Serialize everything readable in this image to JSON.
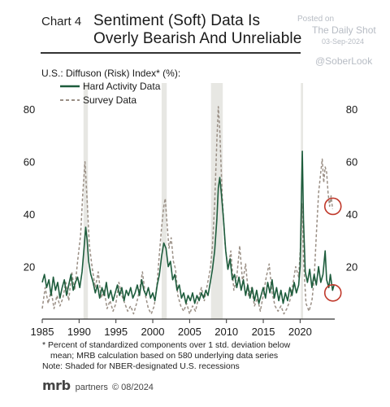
{
  "header": {
    "chart_label": "Chart 4",
    "title_line1": "Sentiment (Soft) Data Is",
    "title_line2": "Overly Bearish And Unreliable"
  },
  "watermark": {
    "posted": "Posted on",
    "site": "The Daily Shot",
    "date": "03-Sep-2024",
    "handle": "@SoberLook"
  },
  "footnotes": {
    "line1": "* Percent of standardized  components over 1 std. deviation below",
    "line1b": "mean; MRB calculation based on 580 underlying data series",
    "line2": "Note: Shaded for NBER-designated U.S. recessions"
  },
  "brand": {
    "logo": "mrb",
    "text": "partners",
    "date": "© 08/2024"
  },
  "colors": {
    "hard": "#1d5c3c",
    "survey": "#9a8f85",
    "recession": "#e7e7e3",
    "circle": "#c0392b"
  },
  "chart_data": {
    "type": "line",
    "title": "U.S.: Diffuson (Risk) Index* (%):",
    "xlim": [
      1985,
      2024.7
    ],
    "ylim": [
      0,
      90
    ],
    "y_ticks": [
      20,
      40,
      60,
      80
    ],
    "x_ticks": [
      1985,
      1990,
      1995,
      2000,
      2005,
      2010,
      2015,
      2020
    ],
    "legend_position": "top-left",
    "recessions": [
      [
        1990.6,
        1991.2
      ],
      [
        2001.2,
        2001.9
      ],
      [
        2007.9,
        2009.5
      ],
      [
        2020.1,
        2020.4
      ]
    ],
    "series": [
      {
        "name": "Hard Activity Data",
        "style": "solid",
        "points": [
          [
            1985.0,
            14
          ],
          [
            1985.3,
            17
          ],
          [
            1985.6,
            12
          ],
          [
            1985.9,
            15
          ],
          [
            1986.2,
            9
          ],
          [
            1986.5,
            16
          ],
          [
            1986.8,
            11
          ],
          [
            1987.1,
            14
          ],
          [
            1987.4,
            8
          ],
          [
            1987.7,
            12
          ],
          [
            1988.0,
            15
          ],
          [
            1988.3,
            9
          ],
          [
            1988.6,
            13
          ],
          [
            1988.9,
            17
          ],
          [
            1989.2,
            11
          ],
          [
            1989.5,
            14
          ],
          [
            1989.8,
            16
          ],
          [
            1990.1,
            12
          ],
          [
            1990.4,
            18
          ],
          [
            1990.7,
            28
          ],
          [
            1990.9,
            35
          ],
          [
            1991.1,
            30
          ],
          [
            1991.3,
            22
          ],
          [
            1991.6,
            17
          ],
          [
            1991.9,
            14
          ],
          [
            1992.2,
            10
          ],
          [
            1992.5,
            13
          ],
          [
            1992.8,
            8
          ],
          [
            1993.1,
            12
          ],
          [
            1993.4,
            9
          ],
          [
            1993.7,
            14
          ],
          [
            1994.0,
            8
          ],
          [
            1994.3,
            11
          ],
          [
            1994.6,
            7
          ],
          [
            1994.9,
            10
          ],
          [
            1995.2,
            13
          ],
          [
            1995.5,
            9
          ],
          [
            1995.8,
            12
          ],
          [
            1996.1,
            7
          ],
          [
            1996.4,
            11
          ],
          [
            1996.7,
            9
          ],
          [
            1997.0,
            12
          ],
          [
            1997.3,
            8
          ],
          [
            1997.6,
            10
          ],
          [
            1997.9,
            13
          ],
          [
            1998.2,
            9
          ],
          [
            1998.5,
            15
          ],
          [
            1998.8,
            11
          ],
          [
            1999.1,
            9
          ],
          [
            1999.4,
            12
          ],
          [
            1999.7,
            8
          ],
          [
            2000.0,
            10
          ],
          [
            2000.3,
            7
          ],
          [
            2000.6,
            13
          ],
          [
            2000.9,
            17
          ],
          [
            2001.2,
            24
          ],
          [
            2001.5,
            29
          ],
          [
            2001.8,
            27
          ],
          [
            2002.1,
            20
          ],
          [
            2002.4,
            22
          ],
          [
            2002.7,
            15
          ],
          [
            2003.0,
            17
          ],
          [
            2003.3,
            11
          ],
          [
            2003.6,
            13
          ],
          [
            2003.9,
            8
          ],
          [
            2004.2,
            10
          ],
          [
            2004.5,
            6
          ],
          [
            2004.8,
            9
          ],
          [
            2005.1,
            7
          ],
          [
            2005.4,
            10
          ],
          [
            2005.7,
            6
          ],
          [
            2006.0,
            9
          ],
          [
            2006.3,
            7
          ],
          [
            2006.6,
            10
          ],
          [
            2006.9,
            8
          ],
          [
            2007.2,
            11
          ],
          [
            2007.5,
            9
          ],
          [
            2007.8,
            14
          ],
          [
            2008.1,
            19
          ],
          [
            2008.4,
            26
          ],
          [
            2008.7,
            38
          ],
          [
            2008.9,
            50
          ],
          [
            2009.1,
            54
          ],
          [
            2009.3,
            48
          ],
          [
            2009.6,
            38
          ],
          [
            2009.9,
            26
          ],
          [
            2010.2,
            19
          ],
          [
            2010.5,
            23
          ],
          [
            2010.8,
            15
          ],
          [
            2011.1,
            17
          ],
          [
            2011.4,
            12
          ],
          [
            2011.7,
            16
          ],
          [
            2012.0,
            11
          ],
          [
            2012.3,
            15
          ],
          [
            2012.6,
            9
          ],
          [
            2012.9,
            13
          ],
          [
            2013.2,
            8
          ],
          [
            2013.5,
            12
          ],
          [
            2013.8,
            7
          ],
          [
            2014.1,
            11
          ],
          [
            2014.4,
            6
          ],
          [
            2014.7,
            9
          ],
          [
            2015.0,
            12
          ],
          [
            2015.3,
            8
          ],
          [
            2015.6,
            14
          ],
          [
            2015.9,
            10
          ],
          [
            2016.2,
            15
          ],
          [
            2016.5,
            8
          ],
          [
            2016.8,
            12
          ],
          [
            2017.1,
            7
          ],
          [
            2017.4,
            11
          ],
          [
            2017.7,
            6
          ],
          [
            2018.0,
            10
          ],
          [
            2018.3,
            7
          ],
          [
            2018.6,
            12
          ],
          [
            2018.9,
            9
          ],
          [
            2019.2,
            14
          ],
          [
            2019.5,
            10
          ],
          [
            2019.8,
            13
          ],
          [
            2020.0,
            20
          ],
          [
            2020.2,
            50
          ],
          [
            2020.3,
            64
          ],
          [
            2020.45,
            38
          ],
          [
            2020.7,
            18
          ],
          [
            2021.0,
            14
          ],
          [
            2021.3,
            19
          ],
          [
            2021.6,
            12
          ],
          [
            2021.9,
            17
          ],
          [
            2022.2,
            13
          ],
          [
            2022.5,
            20
          ],
          [
            2022.8,
            14
          ],
          [
            2023.1,
            17
          ],
          [
            2023.4,
            26
          ],
          [
            2023.6,
            15
          ],
          [
            2023.9,
            12
          ],
          [
            2024.1,
            17
          ],
          [
            2024.4,
            11
          ],
          [
            2024.6,
            13
          ]
        ]
      },
      {
        "name": "Survey Data",
        "style": "dashed",
        "points": [
          [
            1985.0,
            4
          ],
          [
            1985.4,
            12
          ],
          [
            1985.8,
            6
          ],
          [
            1986.2,
            11
          ],
          [
            1986.6,
            4
          ],
          [
            1987.0,
            9
          ],
          [
            1987.4,
            5
          ],
          [
            1987.8,
            8
          ],
          [
            1988.2,
            14
          ],
          [
            1988.6,
            7
          ],
          [
            1989.0,
            18
          ],
          [
            1989.4,
            11
          ],
          [
            1989.8,
            22
          ],
          [
            1990.2,
            32
          ],
          [
            1990.5,
            48
          ],
          [
            1990.8,
            60
          ],
          [
            1991.1,
            45
          ],
          [
            1991.4,
            28
          ],
          [
            1991.8,
            19
          ],
          [
            1992.2,
            12
          ],
          [
            1992.6,
            18
          ],
          [
            1993.0,
            8
          ],
          [
            1993.4,
            11
          ],
          [
            1993.8,
            4
          ],
          [
            1994.2,
            7
          ],
          [
            1994.6,
            3
          ],
          [
            1995.0,
            6
          ],
          [
            1995.4,
            14
          ],
          [
            1995.8,
            9
          ],
          [
            1996.2,
            6
          ],
          [
            1996.6,
            3
          ],
          [
            1997.0,
            5
          ],
          [
            1997.4,
            2
          ],
          [
            1997.8,
            6
          ],
          [
            1998.2,
            11
          ],
          [
            1998.6,
            18
          ],
          [
            1999.0,
            9
          ],
          [
            1999.4,
            4
          ],
          [
            1999.8,
            2
          ],
          [
            2000.2,
            5
          ],
          [
            2000.6,
            14
          ],
          [
            2000.9,
            25
          ],
          [
            2001.2,
            35
          ],
          [
            2001.5,
            43
          ],
          [
            2001.7,
            46
          ],
          [
            2001.9,
            38
          ],
          [
            2002.2,
            27
          ],
          [
            2002.5,
            31
          ],
          [
            2002.8,
            22
          ],
          [
            2003.1,
            19
          ],
          [
            2003.4,
            9
          ],
          [
            2003.8,
            5
          ],
          [
            2004.2,
            3
          ],
          [
            2004.6,
            6
          ],
          [
            2005.0,
            2
          ],
          [
            2005.4,
            5
          ],
          [
            2005.8,
            3
          ],
          [
            2006.2,
            8
          ],
          [
            2006.6,
            12
          ],
          [
            2007.0,
            7
          ],
          [
            2007.4,
            13
          ],
          [
            2007.8,
            19
          ],
          [
            2008.1,
            28
          ],
          [
            2008.4,
            44
          ],
          [
            2008.7,
            68
          ],
          [
            2008.9,
            81
          ],
          [
            2009.1,
            72
          ],
          [
            2009.4,
            48
          ],
          [
            2009.8,
            29
          ],
          [
            2010.2,
            19
          ],
          [
            2010.6,
            26
          ],
          [
            2011.0,
            11
          ],
          [
            2011.4,
            16
          ],
          [
            2011.8,
            28
          ],
          [
            2012.2,
            14
          ],
          [
            2012.6,
            21
          ],
          [
            2013.0,
            9
          ],
          [
            2013.4,
            12
          ],
          [
            2013.8,
            5
          ],
          [
            2014.2,
            8
          ],
          [
            2014.6,
            3
          ],
          [
            2015.0,
            9
          ],
          [
            2015.4,
            16
          ],
          [
            2015.8,
            21
          ],
          [
            2016.2,
            10
          ],
          [
            2016.6,
            5
          ],
          [
            2017.0,
            3
          ],
          [
            2017.4,
            5
          ],
          [
            2017.8,
            2
          ],
          [
            2018.2,
            4
          ],
          [
            2018.6,
            7
          ],
          [
            2019.0,
            13
          ],
          [
            2019.4,
            20
          ],
          [
            2019.8,
            16
          ],
          [
            2020.1,
            30
          ],
          [
            2020.25,
            44
          ],
          [
            2020.45,
            23
          ],
          [
            2020.8,
            6
          ],
          [
            2021.2,
            3
          ],
          [
            2021.6,
            7
          ],
          [
            2021.9,
            15
          ],
          [
            2022.2,
            32
          ],
          [
            2022.5,
            48
          ],
          [
            2022.8,
            56
          ],
          [
            2023.0,
            61
          ],
          [
            2023.2,
            52
          ],
          [
            2023.4,
            58
          ],
          [
            2023.6,
            56
          ],
          [
            2023.8,
            48
          ],
          [
            2024.0,
            43
          ],
          [
            2024.2,
            47
          ],
          [
            2024.4,
            42
          ]
        ]
      }
    ],
    "annotations": [
      {
        "type": "circle",
        "x": 2024.45,
        "y": 43,
        "note": "survey end"
      },
      {
        "type": "circle",
        "x": 2024.45,
        "y": 10,
        "note": "hard end"
      }
    ]
  }
}
